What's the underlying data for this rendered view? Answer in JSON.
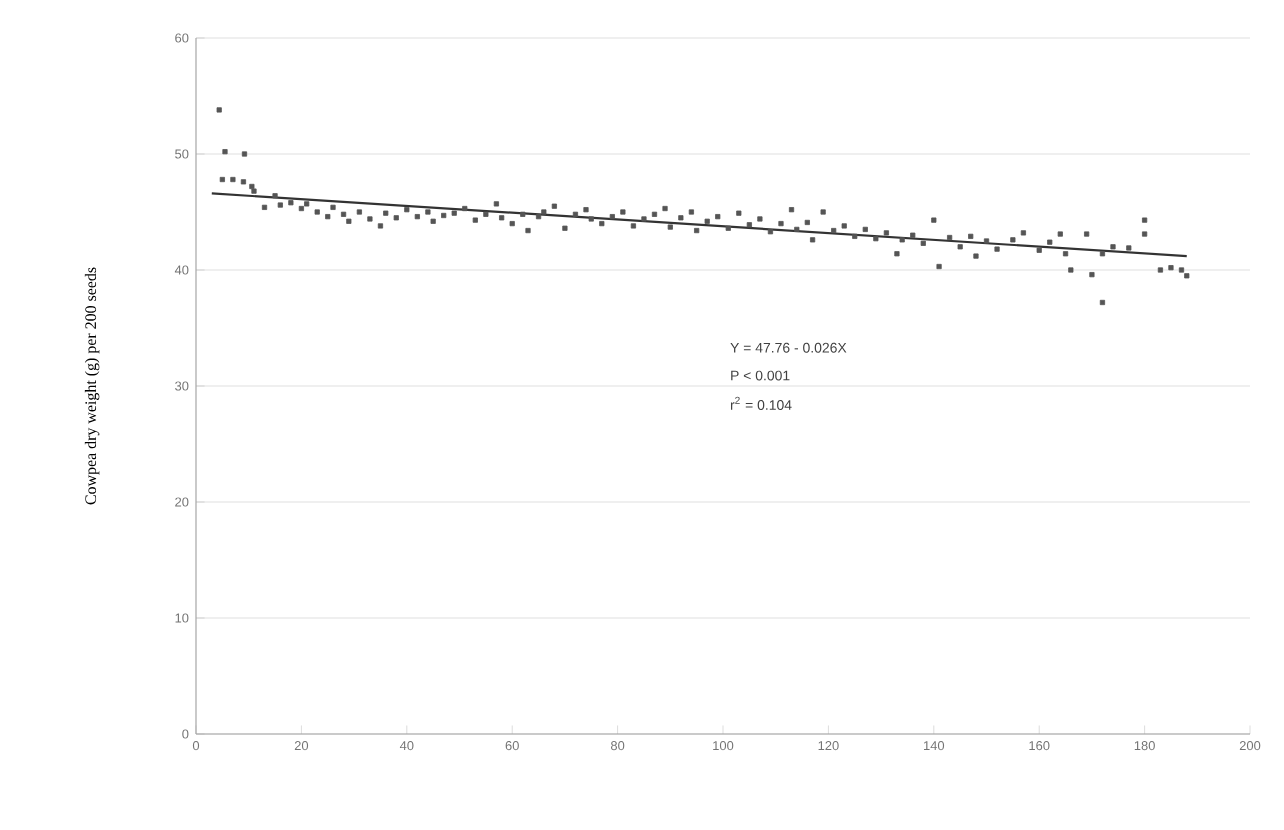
{
  "chart_data": {
    "type": "scatter",
    "ylabel": "Cowpea dry weight (g) per 200 seeds",
    "annotations": [
      "Y = 47.76 - 0.026X",
      "P <  0.001",
      "r$^{2}$ = 0.104"
    ],
    "xlim": [
      0,
      200
    ],
    "xticks": [
      0,
      20,
      40,
      60,
      80,
      100,
      120,
      140,
      160,
      180,
      200
    ],
    "ylim": [
      0,
      60
    ],
    "yticks": [
      0,
      10,
      20,
      30,
      40,
      50,
      60
    ],
    "grid": "y",
    "series": [
      {
        "type": "scatter",
        "marker": "square",
        "color": "#555555",
        "x": [
          4.4,
          5.5,
          9.2,
          5,
          7,
          9,
          10.6,
          11,
          13,
          15,
          16,
          18,
          20,
          21,
          23,
          25,
          26,
          28,
          29,
          31,
          33,
          35,
          36,
          38,
          40,
          42,
          44,
          45,
          47,
          49,
          51,
          53,
          55,
          57,
          58,
          60,
          62,
          63,
          65,
          66,
          68,
          70,
          72,
          74,
          75,
          77,
          79,
          81,
          83,
          85,
          87,
          89,
          90,
          92,
          94,
          95,
          97,
          99,
          101,
          103,
          105,
          107,
          109,
          111,
          113,
          114,
          116,
          117,
          119,
          121,
          123,
          125,
          127,
          129,
          131,
          133,
          134,
          136,
          138,
          140,
          141,
          143,
          145,
          147,
          148,
          150,
          152,
          155,
          157,
          160,
          162,
          164,
          165,
          166,
          169,
          170,
          172,
          172,
          174,
          177,
          180,
          180,
          183,
          185,
          187,
          188
        ],
        "values": [
          53.8,
          50.2,
          50.0,
          47.8,
          47.8,
          47.6,
          47.2,
          46.8,
          45.4,
          46.4,
          45.6,
          45.8,
          45.3,
          45.7,
          45.0,
          44.6,
          45.4,
          44.8,
          44.2,
          45.0,
          44.4,
          43.8,
          44.9,
          44.5,
          45.2,
          44.6,
          45.0,
          44.2,
          44.7,
          44.9,
          45.3,
          44.3,
          44.8,
          45.7,
          44.5,
          44.0,
          44.8,
          43.4,
          44.6,
          45.0,
          45.5,
          43.6,
          44.8,
          45.2,
          44.4,
          44.0,
          44.6,
          45.0,
          43.8,
          44.4,
          44.8,
          45.3,
          43.7,
          44.5,
          45.0,
          43.4,
          44.2,
          44.6,
          43.6,
          44.9,
          43.9,
          44.4,
          43.3,
          44.0,
          45.2,
          43.5,
          44.1,
          42.6,
          45.0,
          43.4,
          43.8,
          42.9,
          43.5,
          42.7,
          43.2,
          41.4,
          42.6,
          43.0,
          42.3,
          44.3,
          40.3,
          42.8,
          42.0,
          42.9,
          41.2,
          42.5,
          41.8,
          42.6,
          43.2,
          41.7,
          42.4,
          43.1,
          41.4,
          40.0,
          43.1,
          39.6,
          37.2,
          41.4,
          42.0,
          41.9,
          44.3,
          43.1,
          40.0,
          40.2,
          40.0,
          39.5
        ]
      },
      {
        "type": "line",
        "color": "#333333",
        "x": [
          3,
          188
        ],
        "values": [
          46.6,
          41.2
        ]
      }
    ]
  }
}
